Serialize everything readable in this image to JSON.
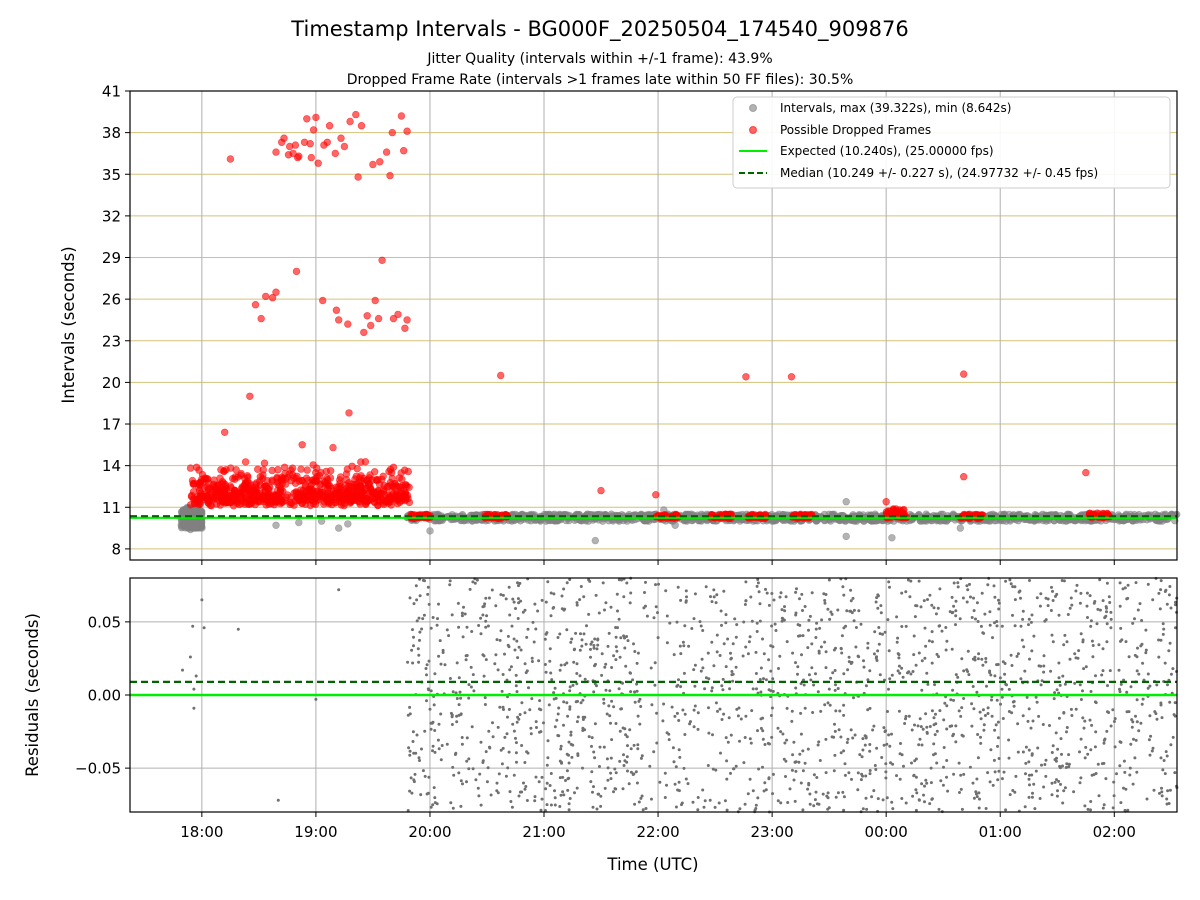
{
  "figure": {
    "title": "Timestamp Intervals - BG000F_20250504_174540_909876",
    "subtitle_lines": [
      "Jitter Quality (intervals within +/-1 frame): 43.9%",
      "Dropped Frame Rate (intervals >1 frames late within 50 FF files): 30.5%"
    ]
  },
  "colors": {
    "intervals": "#808080",
    "dropped": "#ff0000",
    "expected": "#00ee00",
    "median": "#006400",
    "hgrid_top": "#d4c27a",
    "grid": "#b0b0b0"
  },
  "chart_data": [
    {
      "type": "scatter",
      "name": "intervals-panel",
      "ylabel": "Intervals (seconds)",
      "xlabel": "",
      "x_unit": "hours since 17:00 UTC on 2025-05-04",
      "xlim": [
        0.37,
        9.55
      ],
      "ylim": [
        7.2,
        41
      ],
      "yticks": [
        8,
        11,
        14,
        17,
        20,
        23,
        26,
        29,
        32,
        35,
        38,
        41
      ],
      "xticks": [
        1,
        2,
        3,
        4,
        5,
        6,
        7,
        8,
        9
      ],
      "grid": "horizontal lines (olive) + vertical lines (gray)",
      "legend_position": "top-right",
      "legend": [
        "Intervals, max (39.322s), min (8.642s)",
        "Possible Dropped Frames",
        "Expected (10.240s), (25.00000 fps)",
        "Median (10.249 +/- 0.227 s), (24.97732 +/- 0.45 fps)"
      ],
      "expected_value": 10.24,
      "median_value": 10.249,
      "series": [
        {
          "name": "Intervals",
          "points": [
            [
              0.82,
              9.7
            ],
            [
              0.9,
              9.4
            ],
            [
              0.95,
              9.5
            ],
            [
              1.65,
              9.7
            ],
            [
              1.85,
              9.9
            ],
            [
              2.05,
              10.0
            ],
            [
              2.2,
              9.5
            ],
            [
              2.28,
              9.8
            ],
            [
              3,
              9.3
            ],
            [
              4.45,
              8.6
            ],
            [
              5.05,
              10.8
            ],
            [
              5.15,
              9.7
            ],
            [
              6.65,
              11.4
            ],
            [
              6.65,
              8.9
            ],
            [
              7.05,
              8.8
            ],
            [
              7.65,
              9.5
            ]
          ]
        },
        {
          "name": "Possible Dropped Frames",
          "points": [
            [
              1.25,
              36.1
            ],
            [
              1.2,
              16.4
            ],
            [
              1.3,
              13.7
            ],
            [
              1.42,
              19.0
            ],
            [
              1.47,
              25.6
            ],
            [
              1.52,
              24.6
            ],
            [
              1.56,
              26.2
            ],
            [
              1.62,
              26.1
            ],
            [
              1.65,
              26.5
            ],
            [
              1.65,
              36.6
            ],
            [
              1.7,
              37.3
            ],
            [
              1.72,
              37.6
            ],
            [
              1.76,
              36.4
            ],
            [
              1.77,
              37.0
            ],
            [
              1.8,
              36.5
            ],
            [
              1.82,
              37.1
            ],
            [
              1.83,
              28.0
            ],
            [
              1.84,
              36.2
            ],
            [
              1.85,
              36.3
            ],
            [
              1.9,
              37.3
            ],
            [
              1.92,
              39.0
            ],
            [
              1.95,
              37.2
            ],
            [
              1.96,
              36.2
            ],
            [
              1.98,
              38.2
            ],
            [
              2.0,
              39.1
            ],
            [
              2.02,
              35.8
            ],
            [
              2.06,
              25.9
            ],
            [
              2.07,
              37.1
            ],
            [
              2.1,
              37.3
            ],
            [
              2.12,
              38.5
            ],
            [
              2.17,
              36.5
            ],
            [
              2.18,
              25.2
            ],
            [
              2.2,
              24.5
            ],
            [
              2.22,
              37.6
            ],
            [
              2.25,
              37.0
            ],
            [
              2.28,
              24.2
            ],
            [
              2.3,
              38.8
            ],
            [
              2.35,
              39.3
            ],
            [
              2.37,
              34.8
            ],
            [
              2.4,
              38.5
            ],
            [
              2.42,
              23.6
            ],
            [
              2.45,
              24.8
            ],
            [
              2.48,
              24.1
            ],
            [
              2.5,
              35.7
            ],
            [
              2.52,
              25.9
            ],
            [
              2.55,
              24.6
            ],
            [
              2.56,
              35.9
            ],
            [
              2.58,
              28.8
            ],
            [
              2.62,
              36.6
            ],
            [
              2.65,
              34.9
            ],
            [
              2.67,
              38.0
            ],
            [
              2.68,
              24.6
            ],
            [
              2.72,
              24.9
            ],
            [
              2.75,
              39.2
            ],
            [
              2.77,
              36.7
            ],
            [
              2.78,
              23.9
            ],
            [
              2.8,
              24.5
            ],
            [
              2.8,
              38.1
            ],
            [
              2.15,
              15.3
            ],
            [
              2.29,
              17.8
            ],
            [
              1.88,
              15.5
            ],
            [
              3.62,
              20.5
            ],
            [
              4.98,
              11.9
            ],
            [
              4.5,
              12.2
            ],
            [
              5.77,
              20.4
            ],
            [
              6.17,
              20.4
            ],
            [
              7.68,
              20.6
            ],
            [
              7.68,
              13.2
            ],
            [
              8.75,
              13.5
            ],
            [
              7.0,
              11.4
            ]
          ],
          "dense_bands": [
            {
              "x": [
                0.9,
                2.82
              ],
              "y": [
                10.4,
                14.4
              ],
              "count": 760
            },
            {
              "x": [
                2.83,
                3.0
              ],
              "y": [
                10.2,
                10.5
              ],
              "count": 40
            },
            {
              "x": [
                3.48,
                3.7
              ],
              "y": [
                10.2,
                10.5
              ],
              "count": 35
            },
            {
              "x": [
                4.98,
                5.18
              ],
              "y": [
                10.2,
                10.5
              ],
              "count": 35
            },
            {
              "x": [
                5.45,
                5.65
              ],
              "y": [
                10.2,
                10.5
              ],
              "count": 35
            },
            {
              "x": [
                5.77,
                5.95
              ],
              "y": [
                10.2,
                10.5
              ],
              "count": 35
            },
            {
              "x": [
                6.17,
                6.35
              ],
              "y": [
                10.2,
                10.5
              ],
              "count": 35
            },
            {
              "x": [
                7.0,
                7.18
              ],
              "y": [
                10.2,
                10.9
              ],
              "count": 45
            },
            {
              "x": [
                7.65,
                7.85
              ],
              "y": [
                10.2,
                10.5
              ],
              "count": 35
            },
            {
              "x": [
                8.78,
                8.96
              ],
              "y": [
                10.2,
                10.6
              ],
              "count": 35
            }
          ]
        },
        {
          "name": "Expected",
          "value": 10.24
        },
        {
          "name": "Median",
          "value": 10.249
        }
      ],
      "interval_bands": [
        {
          "x": [
            0.82,
            1.0
          ],
          "y": [
            9.5,
            11.0
          ],
          "count": 260
        },
        {
          "x": [
            2.8,
            9.55
          ],
          "y": [
            10.0,
            10.5
          ],
          "count": 1300
        }
      ]
    },
    {
      "type": "scatter",
      "name": "residuals-panel",
      "ylabel": "Residuals (seconds)",
      "xlabel": "Time (UTC)",
      "xlim": [
        0.37,
        9.55
      ],
      "ylim": [
        -0.08,
        0.08
      ],
      "yticks": [
        -0.05,
        0.0,
        0.05
      ],
      "ytick_labels": [
        "−0.05",
        "0.00",
        "0.05"
      ],
      "xticks": [
        1,
        2,
        3,
        4,
        5,
        6,
        7,
        8,
        9
      ],
      "xtick_labels": [
        "18:00",
        "19:00",
        "20:00",
        "21:00",
        "22:00",
        "23:00",
        "00:00",
        "01:00",
        "02:00"
      ],
      "grid": "both",
      "expected_value": 0.0,
      "median_value": 0.009,
      "series": [
        {
          "name": "Residuals",
          "points": [
            [
              0.83,
              0.017
            ],
            [
              0.9,
              0.026
            ],
            [
              0.92,
              0.047
            ],
            [
              0.93,
              -0.009
            ],
            [
              0.93,
              0.004
            ],
            [
              0.95,
              0.013
            ],
            [
              1.0,
              0.065
            ],
            [
              1.02,
              0.046
            ],
            [
              1.32,
              0.045
            ],
            [
              1.67,
              -0.072
            ],
            [
              2.0,
              -0.003
            ],
            [
              2.2,
              0.072
            ]
          ],
          "dense_band": {
            "x": [
              2.8,
              9.55
            ],
            "y": [
              -0.08,
              0.08
            ],
            "count": 1900
          }
        }
      ]
    }
  ]
}
